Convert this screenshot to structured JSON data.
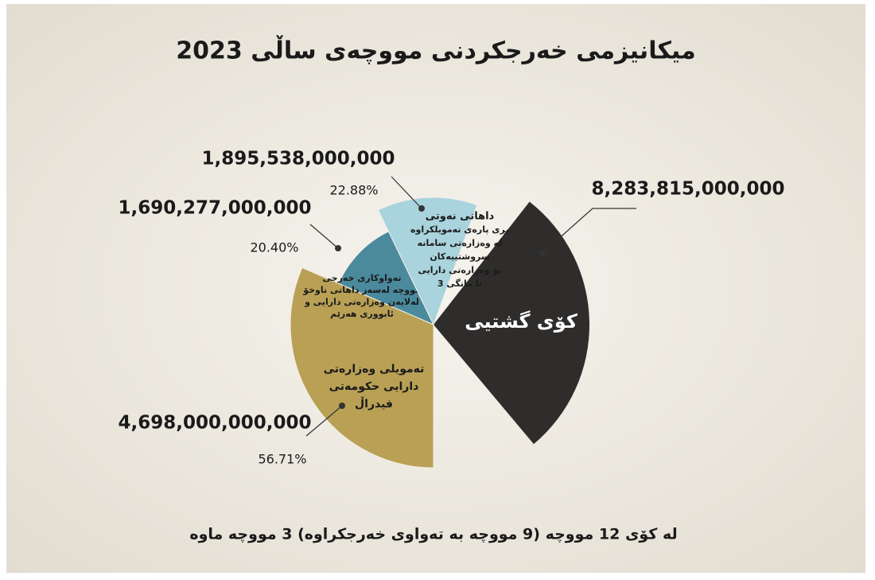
{
  "chart_data": {
    "type": "pie",
    "title": "ميكانيزمى خەرجكردنى مووچەى ساڵى 2023",
    "total": {
      "label": "کۆی گشتیی",
      "value": 8283815000000,
      "value_label": "8,283,815,000,000",
      "color": "#2f2d2c"
    },
    "categories": [
      [
        "تەمویلی وەزارەتی",
        "دارایی حکومەتی",
        "فیدراڵ"
      ],
      [
        "تەواوکاری خەرجی",
        "مووچە لەسەر داهاتی ناوخۆ",
        "لەلایەن وەزارەتی دارایی و",
        "ئابووری هەرێم"
      ],
      [
        "داهاتی نەوتی",
        "بڕی پارەی تەمویلکراوە",
        "لە وەزارەتی سامانە",
        "سروشتییەکان",
        "بۆ وەزارەتی دارایی",
        "تا مانگی 3"
      ]
    ],
    "values": [
      4698000000000,
      1690277000000,
      1895538000000
    ],
    "value_labels": [
      "4,698,000,000,000",
      "1,690,277,000,000",
      "1,895,538,000,000"
    ],
    "percents": [
      56.71,
      20.4,
      22.88
    ],
    "percent_labels": [
      "56.71%",
      "20.40%",
      "22.88%"
    ],
    "colors": [
      "#b9a055",
      "#4a8a9c",
      "#a9d3dd"
    ],
    "footnote": "لە کۆی 12 مووچە (9 مووچە بە تەواوی خەرجکراوە) 3 مووچە ماوە"
  }
}
